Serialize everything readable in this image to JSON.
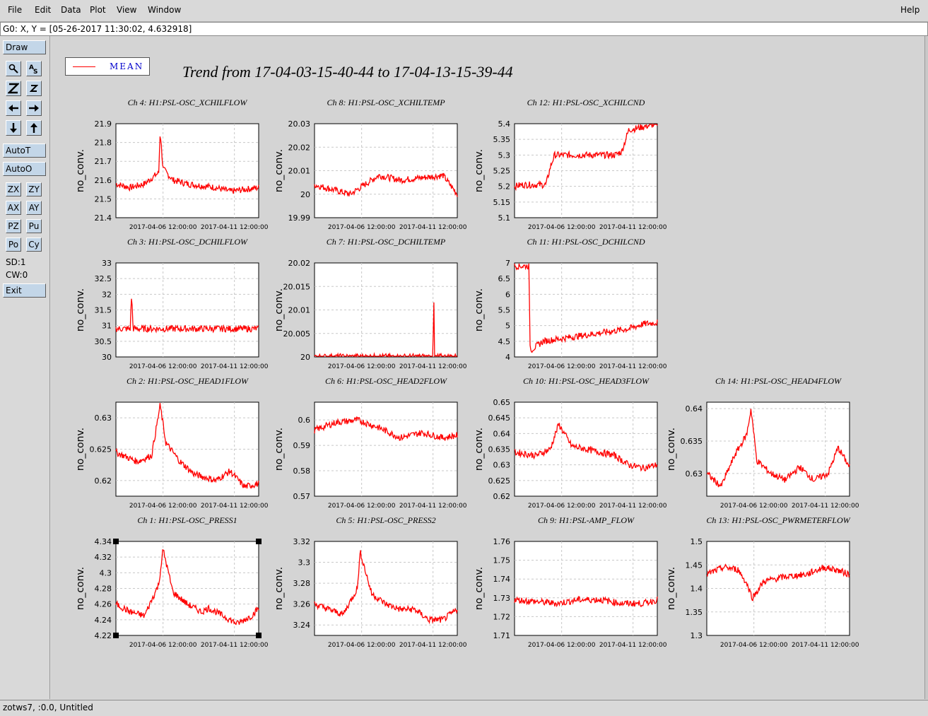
{
  "menu": {
    "file": "File",
    "edit": "Edit",
    "data": "Data",
    "plot": "Plot",
    "view": "View",
    "window": "Window",
    "help": "Help"
  },
  "coord_readout": "G0: X, Y = [05-26-2017 11:30:02, 4.632918]",
  "toolbar": {
    "draw": "Draw",
    "autot": "AutoT",
    "autoo": "AutoO",
    "zx": "ZX",
    "zy": "ZY",
    "ax": "AX",
    "ay": "AY",
    "pz": "PZ",
    "pu": "Pu",
    "po": "Po",
    "cy": "Cy",
    "sd": "SD:1",
    "cw": "CW:0",
    "exit": "Exit",
    "icons": [
      "magnify-icon",
      "text-tool-icon",
      "zoom-in-icon",
      "zoom-out-icon",
      "arrow-left-icon",
      "arrow-right-icon",
      "arrow-down-icon",
      "arrow-up-icon"
    ]
  },
  "status": "zotws7, :0.0, Untitled",
  "legend": {
    "label": "MEAN",
    "color": "#ff0000"
  },
  "page_title": "Trend from 17-04-03-15-40-44 to 17-04-13-15-39-44",
  "accent_color": "#ff0000",
  "chart_data": [
    {
      "type": "line",
      "title": "Ch 4: H1:PSL-OSC_XCHILFLOW",
      "ylabel": "no_conv.",
      "xticks": [
        "2017-04-06 12:00:00",
        "2017-04-11 12:00:00"
      ],
      "yticks": [
        "21.9",
        "21.8",
        "21.7",
        "21.6",
        "21.5",
        "21.4"
      ],
      "ylim": [
        21.4,
        21.9
      ],
      "series": [
        {
          "x": [
            0,
            0.1,
            0.2,
            0.3,
            0.31,
            0.33,
            0.4,
            0.5,
            0.6,
            0.7,
            0.8,
            0.9,
            1.0
          ],
          "y": [
            21.58,
            21.56,
            21.58,
            21.64,
            21.86,
            21.66,
            21.6,
            21.58,
            21.57,
            21.56,
            21.54,
            21.55,
            21.56
          ]
        }
      ]
    },
    {
      "type": "line",
      "title": "Ch 8: H1:PSL-OSC_XCHILTEMP",
      "ylabel": "no_conv.",
      "xticks": [
        "2017-04-06 12:00:00",
        "2017-04-11 12:00:00"
      ],
      "yticks": [
        "20.03",
        "20.02",
        "20.01",
        "20",
        "19.99"
      ],
      "ylim": [
        19.99,
        20.03
      ],
      "series": [
        {
          "x": [
            0,
            0.25,
            0.45,
            0.6,
            0.9,
            1.0
          ],
          "y": [
            20.004,
            20.0,
            20.008,
            20.006,
            20.008,
            20.0
          ]
        }
      ]
    },
    {
      "type": "line",
      "title": "Ch 12: H1:PSL-OSC_XCHILCND",
      "ylabel": "no_conv.",
      "xticks": [
        "2017-04-06 12:00:00",
        "2017-04-11 12:00:00"
      ],
      "yticks": [
        "5.4",
        "5.35",
        "5.3",
        "5.25",
        "5.2",
        "5.15",
        "5.1"
      ],
      "ylim": [
        5.1,
        5.4
      ],
      "series": [
        {
          "x": [
            0,
            0.05,
            0.22,
            0.25,
            0.28,
            0.6,
            0.7,
            0.75,
            0.8,
            1.0
          ],
          "y": [
            5.2,
            5.205,
            5.205,
            5.26,
            5.3,
            5.3,
            5.3,
            5.31,
            5.38,
            5.4
          ]
        }
      ]
    },
    {
      "type": "line",
      "title": "Ch 3: H1:PSL-OSC_DCHILFLOW",
      "ylabel": "no_conv.",
      "xticks": [
        "2017-04-06 12:00:00",
        "2017-04-11 12:00:00"
      ],
      "yticks": [
        "33",
        "32.5",
        "32",
        "31.5",
        "31",
        "30.5",
        "30"
      ],
      "ylim": [
        30,
        33
      ],
      "series": [
        {
          "x": [
            0,
            0.1,
            0.11,
            0.12,
            0.5,
            1.0
          ],
          "y": [
            30.9,
            30.9,
            32.0,
            30.9,
            30.9,
            30.9
          ]
        }
      ]
    },
    {
      "type": "line",
      "title": "Ch 7: H1:PSL-OSC_DCHILTEMP",
      "ylabel": "no_conv.",
      "xticks": [
        "2017-04-06 12:00:00",
        "2017-04-11 12:00:00"
      ],
      "yticks": [
        "20.02",
        "20.015",
        "20.01",
        "20.005",
        "20"
      ],
      "ylim": [
        20,
        20.02
      ],
      "series": [
        {
          "x": [
            0,
            0.83,
            0.835,
            0.84,
            1.0
          ],
          "y": [
            20.0,
            20.0,
            20.015,
            20.0,
            20.0
          ]
        }
      ]
    },
    {
      "type": "line",
      "title": "Ch 11: H1:PSL-OSC_DCHILCND",
      "ylabel": "no_conv.",
      "xticks": [
        "2017-04-06 12:00:00",
        "2017-04-11 12:00:00"
      ],
      "yticks": [
        "7",
        "6.5",
        "6",
        "5.5",
        "5",
        "4.5",
        "4"
      ],
      "ylim": [
        4,
        7
      ],
      "series": [
        {
          "x": [
            0,
            0.1,
            0.11,
            0.2,
            0.35,
            0.5,
            0.65,
            0.8,
            0.9,
            1.0
          ],
          "y": [
            6.9,
            6.9,
            4.2,
            4.5,
            4.6,
            4.7,
            4.8,
            4.9,
            5.05,
            5.1
          ]
        }
      ]
    },
    {
      "type": "line",
      "title": "Ch 2: H1:PSL-OSC_HEAD1FLOW",
      "ylabel": "no_conv.",
      "xticks": [
        "2017-04-06 12:00:00",
        "2017-04-11 12:00:00"
      ],
      "yticks": [
        "0.63",
        "0.625",
        "0.62"
      ],
      "ylim": [
        0.6175,
        0.6325
      ],
      "series": [
        {
          "x": [
            0,
            0.15,
            0.25,
            0.31,
            0.35,
            0.45,
            0.55,
            0.7,
            0.8,
            0.9,
            1.0
          ],
          "y": [
            0.6245,
            0.623,
            0.624,
            0.632,
            0.626,
            0.623,
            0.621,
            0.62,
            0.6215,
            0.619,
            0.6195
          ]
        }
      ]
    },
    {
      "type": "line",
      "title": "Ch 6: H1:PSL-OSC_HEAD2FLOW",
      "ylabel": "no_conv.",
      "xticks": [
        "2017-04-06 12:00:00",
        "2017-04-11 12:00:00"
      ],
      "yticks": [
        "0.6",
        "0.59",
        "0.58",
        "0.57"
      ],
      "ylim": [
        0.57,
        0.607
      ],
      "series": [
        {
          "x": [
            0,
            0.15,
            0.3,
            0.45,
            0.6,
            0.75,
            0.9,
            1.0
          ],
          "y": [
            0.596,
            0.599,
            0.6,
            0.597,
            0.593,
            0.595,
            0.593,
            0.594
          ]
        }
      ]
    },
    {
      "type": "line",
      "title": "Ch 10: H1:PSL-OSC_HEAD3FLOW",
      "ylabel": "no_conv.",
      "xticks": [
        "2017-04-06 12:00:00",
        "2017-04-11 12:00:00"
      ],
      "yticks": [
        "0.65",
        "0.645",
        "0.64",
        "0.635",
        "0.63",
        "0.625",
        "0.62"
      ],
      "ylim": [
        0.62,
        0.65
      ],
      "series": [
        {
          "x": [
            0,
            0.15,
            0.25,
            0.31,
            0.4,
            0.5,
            0.6,
            0.7,
            0.8,
            0.9,
            1.0
          ],
          "y": [
            0.634,
            0.633,
            0.635,
            0.643,
            0.636,
            0.635,
            0.634,
            0.633,
            0.63,
            0.629,
            0.63
          ]
        }
      ]
    },
    {
      "type": "line",
      "title": "Ch 14: H1:PSL-OSC_HEAD4FLOW",
      "ylabel": "no_conv.",
      "xticks": [
        "2017-04-06 12:00:00",
        "2017-04-11 12:00:00"
      ],
      "yticks": [
        "0.64",
        "0.635",
        "0.63"
      ],
      "ylim": [
        0.6265,
        0.641
      ],
      "series": [
        {
          "x": [
            0,
            0.1,
            0.2,
            0.28,
            0.31,
            0.35,
            0.45,
            0.55,
            0.65,
            0.75,
            0.85,
            0.92,
            1.0
          ],
          "y": [
            0.63,
            0.628,
            0.633,
            0.636,
            0.64,
            0.632,
            0.63,
            0.629,
            0.631,
            0.629,
            0.63,
            0.634,
            0.631
          ]
        }
      ]
    },
    {
      "type": "line",
      "title": "Ch 1: H1:PSL-OSC_PRESS1",
      "ylabel": "no_conv.",
      "xticks": [
        "2017-04-06 12:00:00",
        "2017-04-11 12:00:00"
      ],
      "yticks": [
        "4.34",
        "4.32",
        "4.3",
        "4.28",
        "4.26",
        "4.24",
        "4.22"
      ],
      "ylim": [
        4.22,
        4.34
      ],
      "series": [
        {
          "x": [
            0,
            0.1,
            0.2,
            0.3,
            0.33,
            0.4,
            0.5,
            0.6,
            0.65,
            0.75,
            0.85,
            0.95,
            1.0
          ],
          "y": [
            4.26,
            4.25,
            4.245,
            4.285,
            4.33,
            4.275,
            4.26,
            4.25,
            4.255,
            4.245,
            4.235,
            4.245,
            4.255
          ]
        }
      ]
    },
    {
      "type": "line",
      "title": "Ch 5: H1:PSL-OSC_PRESS2",
      "ylabel": "no_conv.",
      "xticks": [
        "2017-04-06 12:00:00",
        "2017-04-11 12:00:00"
      ],
      "yticks": [
        "3.32",
        "3.3",
        "3.28",
        "3.26",
        "3.24"
      ],
      "ylim": [
        3.23,
        3.32
      ],
      "series": [
        {
          "x": [
            0,
            0.1,
            0.2,
            0.3,
            0.32,
            0.4,
            0.5,
            0.6,
            0.7,
            0.8,
            0.9,
            1.0
          ],
          "y": [
            3.26,
            3.255,
            3.25,
            3.275,
            3.31,
            3.27,
            3.26,
            3.255,
            3.255,
            3.245,
            3.245,
            3.255
          ]
        }
      ]
    },
    {
      "type": "line",
      "title": "Ch 9: H1:PSL-AMP_FLOW",
      "ylabel": "no_conv.",
      "xticks": [
        "2017-04-06 12:00:00",
        "2017-04-11 12:00:00"
      ],
      "yticks": [
        "1.76",
        "1.75",
        "1.74",
        "1.73",
        "1.72",
        "1.71"
      ],
      "ylim": [
        1.71,
        1.76
      ],
      "series": [
        {
          "x": [
            0,
            0.15,
            0.3,
            0.45,
            0.6,
            0.75,
            0.9,
            1.0
          ],
          "y": [
            1.729,
            1.728,
            1.727,
            1.729,
            1.729,
            1.727,
            1.727,
            1.729
          ]
        }
      ]
    },
    {
      "type": "line",
      "title": "Ch 13: H1:PSL-OSC_PWRMETERFLOW",
      "ylabel": "no_conv.",
      "xticks": [
        "2017-04-06 12:00:00",
        "2017-04-11 12:00:00"
      ],
      "yticks": [
        "1.5",
        "1.45",
        "1.4",
        "1.35",
        "1.3"
      ],
      "ylim": [
        1.3,
        1.5
      ],
      "series": [
        {
          "x": [
            0,
            0.12,
            0.22,
            0.28,
            0.32,
            0.4,
            0.55,
            0.7,
            0.82,
            0.9,
            1.0
          ],
          "y": [
            1.43,
            1.445,
            1.44,
            1.41,
            1.38,
            1.415,
            1.425,
            1.43,
            1.445,
            1.44,
            1.43
          ]
        }
      ]
    }
  ]
}
